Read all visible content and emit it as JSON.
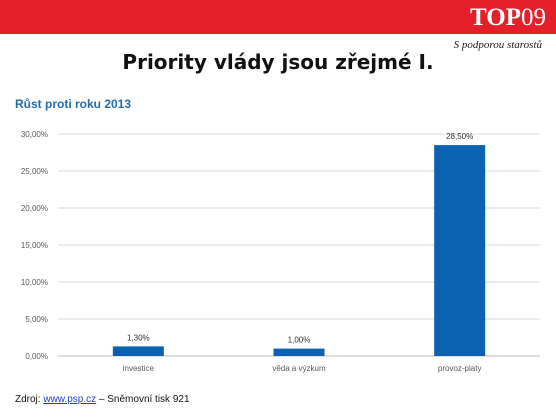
{
  "header": {
    "logo_main": "TOP",
    "logo_num": "09",
    "tagline": "S podporou starostů",
    "brand_color": "#e4202b"
  },
  "title": "Priority vlády jsou zřejmé I.",
  "chart_data": {
    "type": "bar",
    "subtitle": "Růst proti roku 2013",
    "categories": [
      "investice",
      "věda a výzkum",
      "provoz-platy"
    ],
    "values": [
      1.3,
      1.0,
      28.5
    ],
    "data_labels": [
      "1,30%",
      "1,00%",
      "28,50%"
    ],
    "ylim": [
      0,
      30
    ],
    "yticks": [
      0,
      5,
      10,
      15,
      20,
      25,
      30
    ],
    "ytick_labels": [
      "0,00%",
      "5,00%",
      "10,00%",
      "15,00%",
      "20,00%",
      "25,00%",
      "30,00%"
    ],
    "grid": true,
    "bar_color": "#0a62b0"
  },
  "source": {
    "prefix": "Zdroj: ",
    "link": "www.psp.cz",
    "suffix": " – Sněmovní tisk 921"
  }
}
